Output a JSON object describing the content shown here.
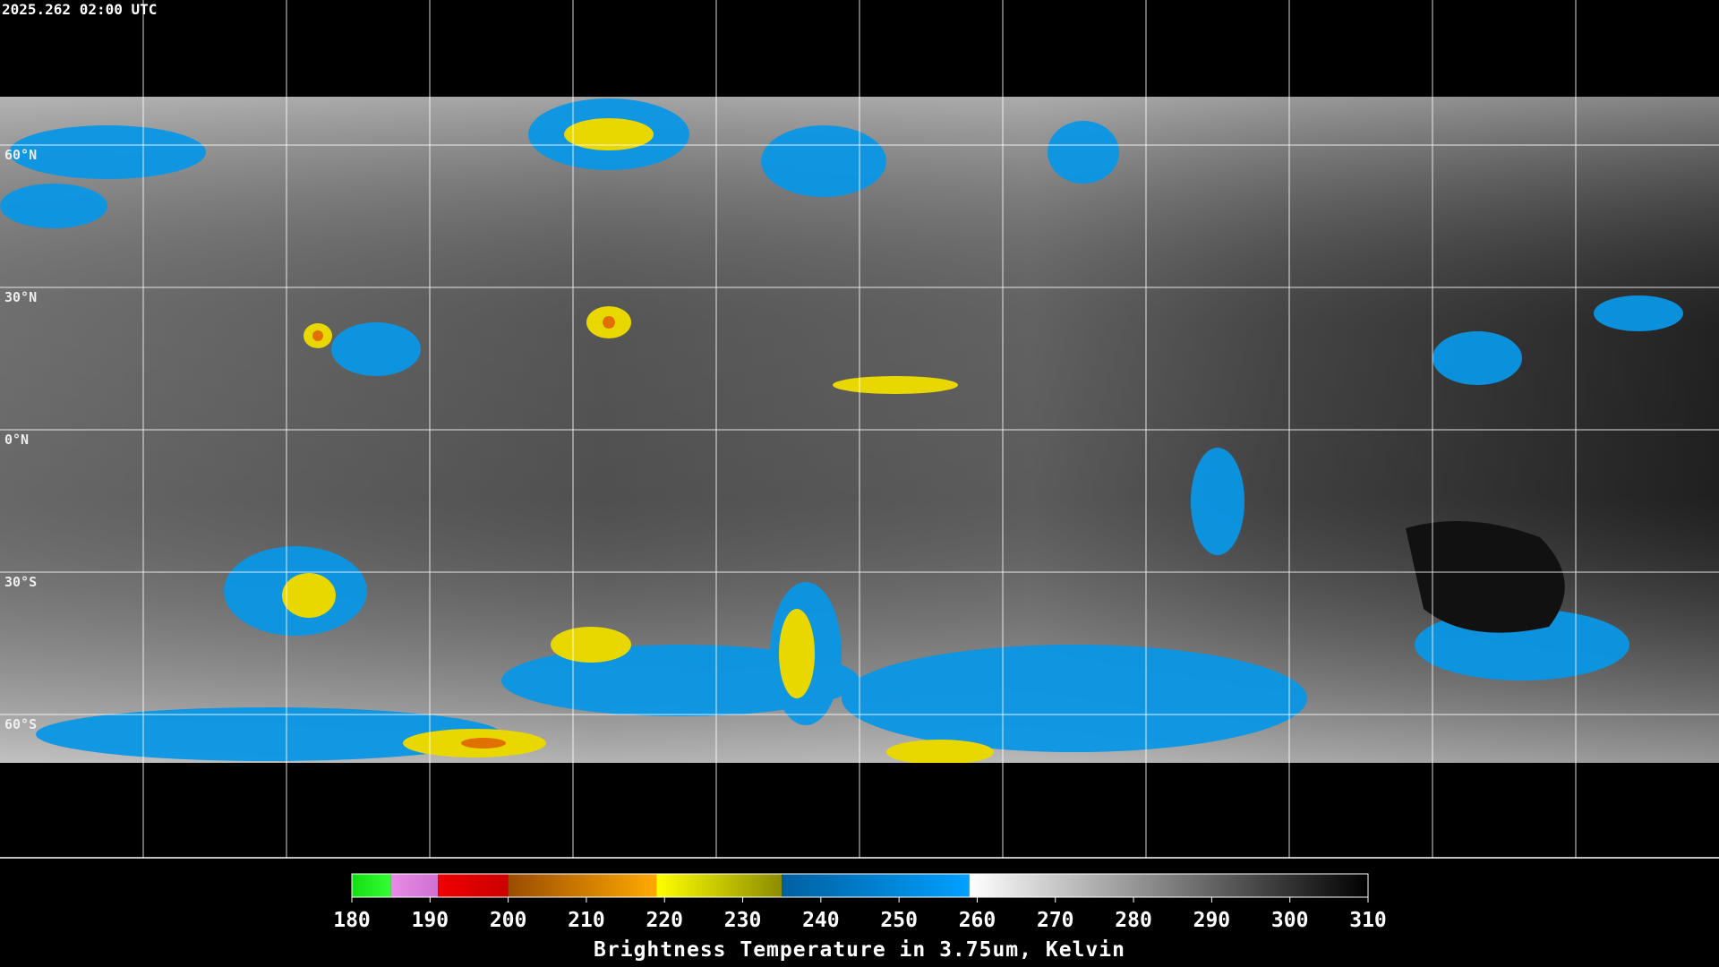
{
  "header": {
    "title": "2025.262 02:00 UTC"
  },
  "map": {
    "latitude_labels": [
      "60°N",
      "30°N",
      "0°N",
      "30°S",
      "60°S"
    ]
  },
  "colorbar": {
    "ticks": [
      180,
      190,
      200,
      210,
      220,
      230,
      240,
      250,
      260,
      270,
      280,
      290,
      300,
      310
    ],
    "segments": [
      {
        "from": 180,
        "to": 185,
        "color": "#11dd11",
        "color2": "#33ff33"
      },
      {
        "from": 185,
        "to": 191,
        "color": "#e88ce8",
        "color2": "#d070d0"
      },
      {
        "from": 191,
        "to": 200,
        "color": "#ee0000",
        "color2": "#cc0000"
      },
      {
        "from": 200,
        "to": 219,
        "color": "#9a4c00",
        "color2": "#ffaa00"
      },
      {
        "from": 219,
        "to": 235,
        "color": "#ffff00",
        "color2": "#8c8c00"
      },
      {
        "from": 235,
        "to": 259,
        "color": "#0060a0",
        "color2": "#00a0ff"
      },
      {
        "from": 259,
        "to": 310,
        "color": "#ffffff",
        "color2": "#000000"
      }
    ],
    "label": "Brightness Temperature in 3.75um, Kelvin"
  }
}
